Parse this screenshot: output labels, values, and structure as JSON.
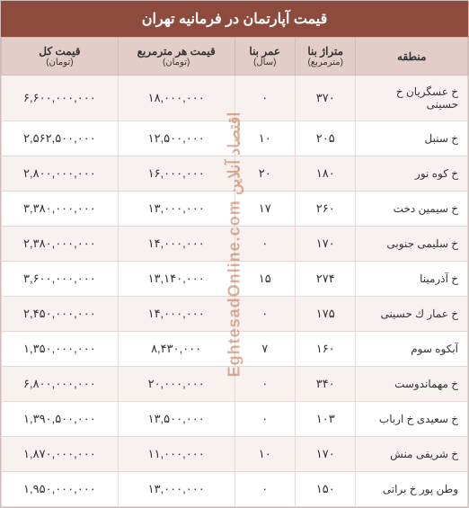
{
  "title": "قیمت آپارتمان در فرمانیه تهران",
  "watermark": "اقتصاد آنلاین  EghtesadOnline.com",
  "columns": {
    "region": {
      "label": "منطقه",
      "unit": ""
    },
    "area": {
      "label": "متراژ بنا",
      "unit": "(مترمربع)"
    },
    "age": {
      "label": "عمر بنا",
      "unit": "(سال)"
    },
    "price_per_m": {
      "label": "قیمت هر مترمربع",
      "unit": "(تومان)"
    },
    "total_price": {
      "label": "قیمت کل",
      "unit": "(تومان)"
    }
  },
  "col_widths": {
    "region": "24%",
    "area": "13%",
    "age": "13%",
    "price_per_m": "25%",
    "total_price": "25%"
  },
  "colors": {
    "title_bg": "#8e4a3d",
    "title_fg": "#ffffff",
    "header_bg": "#e3cdc9",
    "row_odd_bg": "#f9f1ef",
    "row_even_bg": "#ffffff",
    "border": "#d0bcb8"
  },
  "rows": [
    {
      "region": "خ عسگریان خ حسینی",
      "area": "۳۷۰",
      "age": "۰",
      "price_per_m": "۱۸,۰۰۰,۰۰۰",
      "total_price": "۶,۶۰۰,۰۰۰,۰۰۰"
    },
    {
      "region": "خ سنبل",
      "area": "۲۰۵",
      "age": "۱۰",
      "price_per_m": "۱۲,۵۰۰,۰۰۰",
      "total_price": "۲,۵۶۲,۵۰۰,۰۰۰"
    },
    {
      "region": "خ کوه نور",
      "area": "۱۸۰",
      "age": "۲۰",
      "price_per_m": "۱۶,۰۰۰,۰۰۰",
      "total_price": "۲,۸۰۰,۰۰۰,۰۰۰"
    },
    {
      "region": "خ سیمین دخت",
      "area": "۲۶۰",
      "age": "۱۷",
      "price_per_m": "۱۳,۰۰۰,۰۰۰",
      "total_price": "۳,۳۸۰,۰۰۰,۰۰۰"
    },
    {
      "region": "خ سلیمی جنوبی",
      "area": "۱۷۰",
      "age": "۰",
      "price_per_m": "۱۴,۰۰۰,۰۰۰",
      "total_price": "۲,۳۸۰,۰۰۰,۰۰۰"
    },
    {
      "region": "خ آذرمینا",
      "area": "۲۷۴",
      "age": "۱۵",
      "price_per_m": "۱۳,۱۴۰,۰۰۰",
      "total_price": "۳,۶۰۰,۰۰۰,۰۰۰"
    },
    {
      "region": "خ عمار ك حسینی",
      "area": "۱۷۵",
      "age": "۰",
      "price_per_m": "۱۴,۰۰۰,۰۰۰",
      "total_price": "۲,۴۵۰,۰۰۰,۰۰۰"
    },
    {
      "region": "آبکوه سوم",
      "area": "۱۶۰",
      "age": "۷",
      "price_per_m": "۸,۴۳۰,۰۰۰",
      "total_price": "۱,۳۵۰,۰۰۰,۰۰۰"
    },
    {
      "region": "خ مهماندوست",
      "area": "۳۴۰",
      "age": "۰",
      "price_per_m": "۲۰,۰۰۰,۰۰۰",
      "total_price": "۶,۸۰۰,۰۰۰,۰۰۰"
    },
    {
      "region": "خ سعیدی خ ارباب",
      "area": "۱۰۳",
      "age": "۰",
      "price_per_m": "۱۳,۵۰۰,۰۰۰",
      "total_price": "۱,۳۹۰,۵۰۰,۰۰۰"
    },
    {
      "region": "خ شریفی منش",
      "area": "۱۷۰",
      "age": "۱۰",
      "price_per_m": "۱۱,۰۰۰,۰۰۰",
      "total_price": "۱,۸۷۰,۰۰۰,۰۰۰"
    },
    {
      "region": "وطن پور خ براتی",
      "area": "۱۵۰",
      "age": "۰",
      "price_per_m": "۱۳,۰۰۰,۰۰۰",
      "total_price": "۱,۹۵۰,۰۰۰,۰۰۰"
    }
  ]
}
